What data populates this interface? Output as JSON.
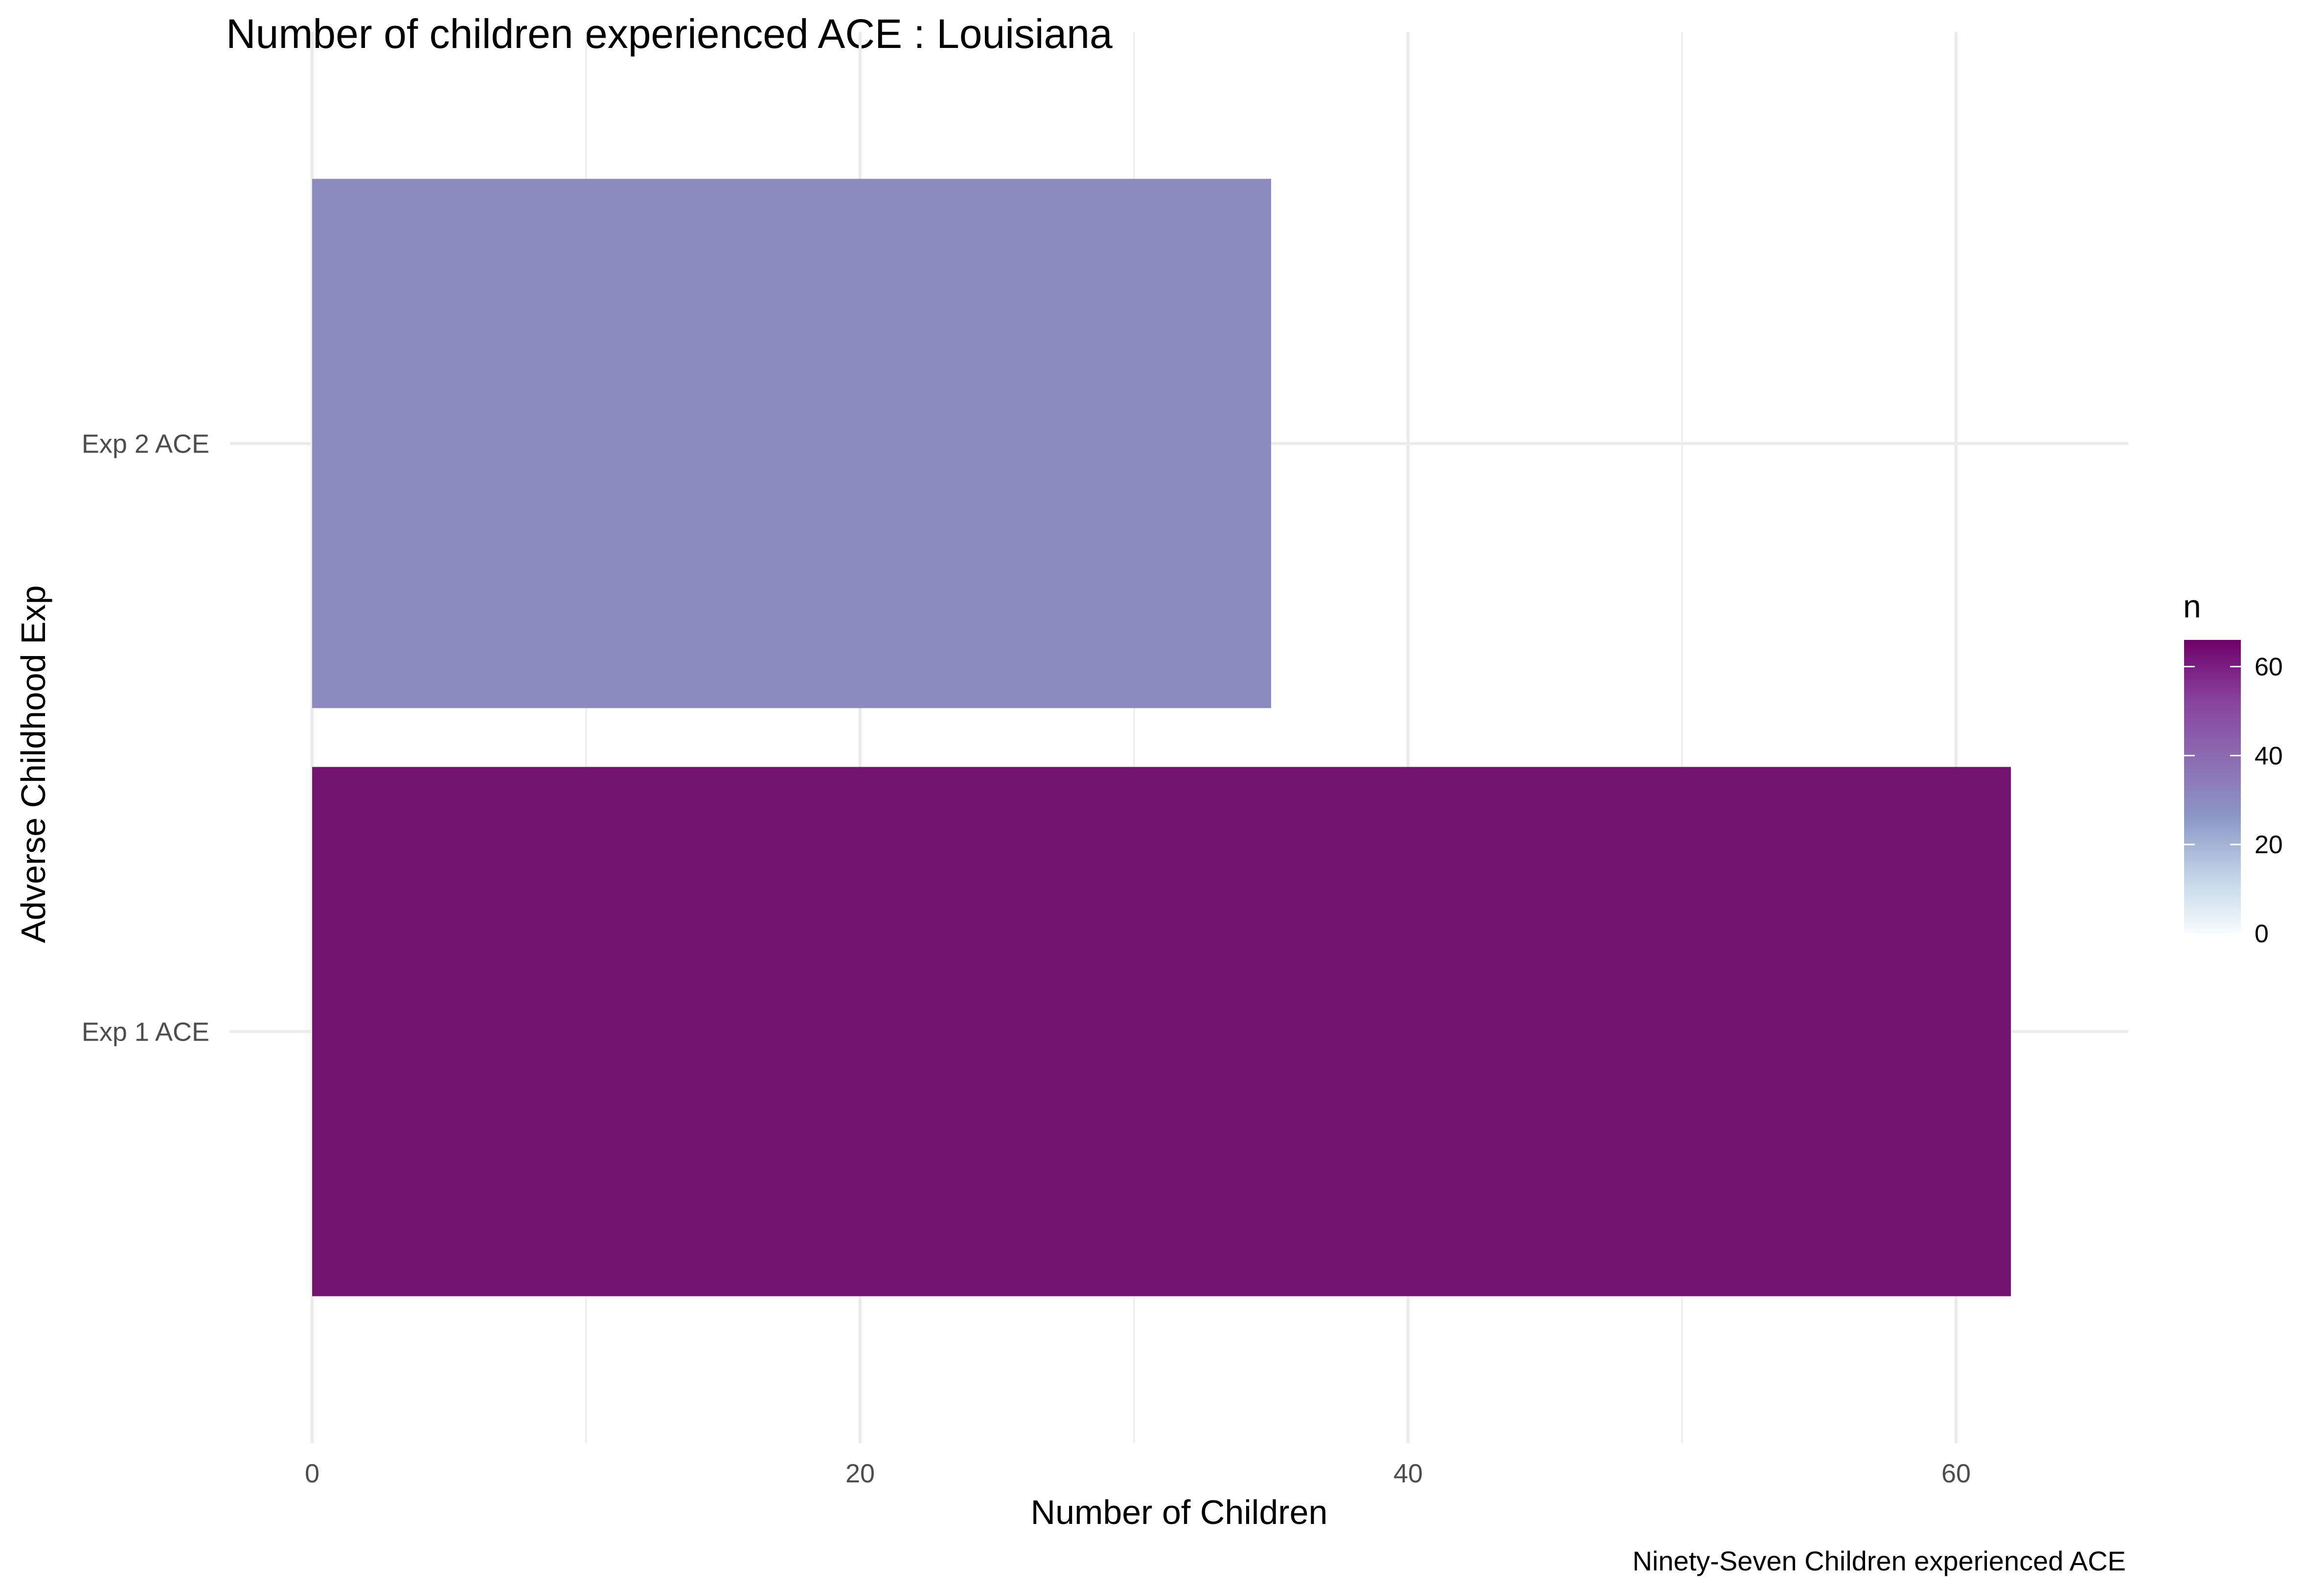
{
  "chart_data": {
    "type": "bar",
    "orientation": "horizontal",
    "title": "Number of children experienced ACE : Louisiana",
    "xlabel": "Number of Children",
    "ylabel": "Adverse Childhood Exp",
    "caption": "Ninety-Seven Children experienced ACE",
    "categories": [
      "Exp 1 ACE",
      "Exp 2 ACE"
    ],
    "values": [
      62,
      35
    ],
    "bar_colors": [
      "#731471",
      "#8c8bbf"
    ],
    "xlim": [
      0,
      67.3
    ],
    "x_ticks": [
      0,
      20,
      40,
      60
    ],
    "x_tick_labels": [
      "0",
      "20",
      "40",
      "60"
    ],
    "grid": true,
    "legend": {
      "title": "n",
      "type": "colorbar",
      "placement": "right",
      "range": [
        0,
        66
      ],
      "ticks": [
        0,
        20,
        40,
        60
      ],
      "tick_labels": [
        "0",
        "20",
        "40",
        "60"
      ],
      "gradient_colors": [
        "#f7fcfd",
        "#bfd3e6",
        "#8c96c6",
        "#8c6bb1",
        "#88419d",
        "#6e016b"
      ]
    }
  }
}
